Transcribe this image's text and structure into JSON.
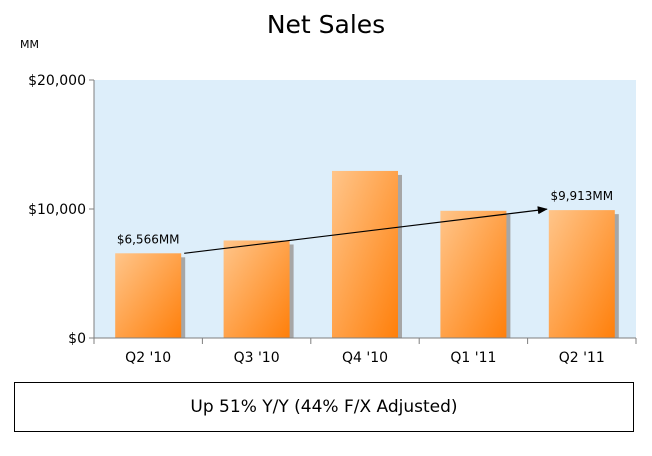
{
  "chart_data": {
    "type": "bar",
    "title": "Net Sales",
    "unit_label": "MM",
    "categories": [
      "Q2 '10",
      "Q3 '10",
      "Q4 '10",
      "Q1 '11",
      "Q2 '11"
    ],
    "values": [
      6566,
      7560,
      12950,
      9860,
      9913
    ],
    "ylim": [
      0,
      20000
    ],
    "yticks": [
      0,
      10000,
      20000
    ],
    "ytick_labels": [
      "$0",
      "$10,000",
      "$20,000"
    ],
    "data_labels": [
      {
        "index": 0,
        "text": "$6,566MM"
      },
      {
        "index": 4,
        "text": "$9,913MM"
      }
    ],
    "trend_arrow": {
      "from_index": 0,
      "to_index": 4
    },
    "colors": {
      "plot_bg": "#ddeefa",
      "bar_light": "#ffc58a",
      "bar_dark": "#ff7f0a",
      "bar_shadow": "#a6a6a6"
    },
    "grid": false,
    "legend": "none"
  },
  "callout_text": "Up 51% Y/Y (44% F/X Adjusted)"
}
